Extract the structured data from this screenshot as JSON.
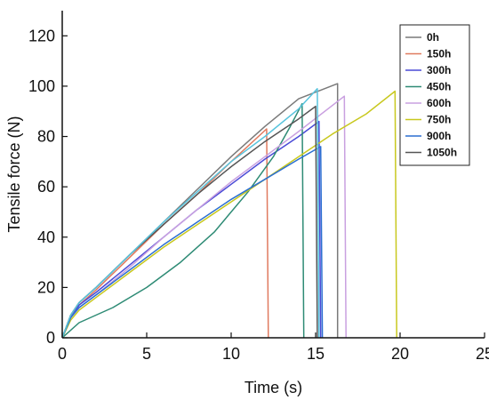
{
  "chart_data": {
    "type": "line",
    "title": "",
    "xlabel": "Time (s)",
    "ylabel": "Tensile force (N)",
    "xlim": [
      0,
      25
    ],
    "ylim": [
      0,
      130
    ],
    "xticks": [
      0,
      5,
      10,
      15,
      20,
      25
    ],
    "yticks": [
      0,
      20,
      40,
      60,
      80,
      100,
      120
    ],
    "grid": false,
    "legend_position": "top-right",
    "series": [
      {
        "name": "0h",
        "color": "#7a7a7a",
        "points": [
          [
            0,
            0
          ],
          [
            0.5,
            9
          ],
          [
            1,
            14
          ],
          [
            2,
            20
          ],
          [
            4,
            33
          ],
          [
            6,
            46
          ],
          [
            8,
            59
          ],
          [
            10,
            72
          ],
          [
            12,
            84
          ],
          [
            14,
            95
          ],
          [
            16.3,
            101
          ],
          [
            16.3,
            0
          ]
        ]
      },
      {
        "name": "150h",
        "color": "#e07a5f",
        "points": [
          [
            0,
            0
          ],
          [
            0.5,
            8
          ],
          [
            1,
            13
          ],
          [
            2,
            19
          ],
          [
            4,
            32
          ],
          [
            6,
            45
          ],
          [
            8,
            57
          ],
          [
            10,
            70
          ],
          [
            12.1,
            83
          ],
          [
            12.2,
            0
          ]
        ]
      },
      {
        "name": "300h",
        "color": "#4a4ad6",
        "points": [
          [
            0,
            0
          ],
          [
            0.5,
            8
          ],
          [
            1,
            13
          ],
          [
            2,
            18
          ],
          [
            4,
            29
          ],
          [
            6,
            40
          ],
          [
            8,
            51
          ],
          [
            10,
            61
          ],
          [
            12,
            71
          ],
          [
            14,
            80
          ],
          [
            15.2,
            86
          ],
          [
            15.3,
            0
          ]
        ]
      },
      {
        "name": "450h",
        "color": "#2e8b75",
        "points": [
          [
            0,
            0
          ],
          [
            1,
            6
          ],
          [
            3,
            12
          ],
          [
            5,
            20
          ],
          [
            7,
            30
          ],
          [
            9,
            42
          ],
          [
            11,
            58
          ],
          [
            12.5,
            72
          ],
          [
            13.5,
            84
          ],
          [
            14.2,
            93
          ],
          [
            14.3,
            0
          ]
        ]
      },
      {
        "name": "600h",
        "color": "#c9a0e0",
        "points": [
          [
            0,
            0
          ],
          [
            0.5,
            8
          ],
          [
            1,
            12
          ],
          [
            2,
            17
          ],
          [
            4,
            28
          ],
          [
            6,
            40
          ],
          [
            8,
            51
          ],
          [
            10,
            62
          ],
          [
            12,
            72
          ],
          [
            14,
            82
          ],
          [
            16.7,
            96
          ],
          [
            16.8,
            0
          ]
        ]
      },
      {
        "name": "750h",
        "color": "#c8c81e",
        "points": [
          [
            0,
            0
          ],
          [
            0.5,
            7
          ],
          [
            1,
            11
          ],
          [
            2,
            16
          ],
          [
            4,
            26
          ],
          [
            6,
            36
          ],
          [
            8,
            45
          ],
          [
            10,
            54
          ],
          [
            12,
            63
          ],
          [
            14,
            72
          ],
          [
            16,
            81
          ],
          [
            18,
            89
          ],
          [
            19.7,
            98
          ],
          [
            19.8,
            0
          ]
        ]
      },
      {
        "name": "900h",
        "color": "#2b6fd1",
        "points": [
          [
            0,
            0
          ],
          [
            0.5,
            8
          ],
          [
            1,
            12
          ],
          [
            2,
            17
          ],
          [
            4,
            27
          ],
          [
            6,
            37
          ],
          [
            8,
            46
          ],
          [
            10,
            55
          ],
          [
            12,
            63
          ],
          [
            14,
            71
          ],
          [
            15.3,
            76
          ],
          [
            15.4,
            0
          ]
        ]
      },
      {
        "name": "1050h",
        "color": "#555555",
        "points": [
          [
            0,
            0
          ],
          [
            0.5,
            9
          ],
          [
            1,
            14
          ],
          [
            2,
            20
          ],
          [
            4,
            33
          ],
          [
            6,
            45
          ],
          [
            8,
            57
          ],
          [
            10,
            68
          ],
          [
            12,
            78
          ],
          [
            14,
            87
          ],
          [
            15,
            92
          ],
          [
            15.1,
            0
          ]
        ]
      },
      {
        "name": "",
        "color": "#58c4dd",
        "points": [
          [
            0,
            0
          ],
          [
            0.5,
            9
          ],
          [
            1,
            14
          ],
          [
            2,
            20
          ],
          [
            4,
            33
          ],
          [
            6,
            46
          ],
          [
            8,
            58
          ],
          [
            10,
            70
          ],
          [
            12,
            80
          ],
          [
            14,
            91
          ],
          [
            15.1,
            99
          ],
          [
            15.2,
            0
          ]
        ]
      }
    ]
  }
}
